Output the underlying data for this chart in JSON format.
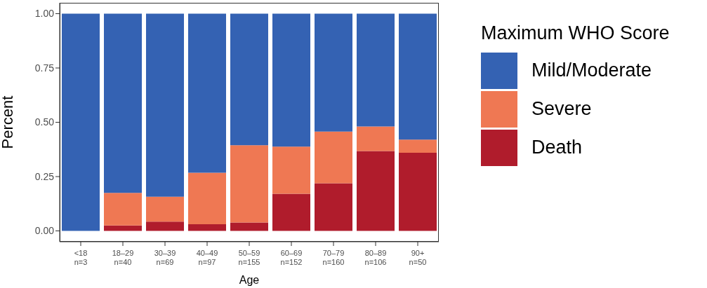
{
  "chart_data": {
    "type": "bar",
    "stacked": true,
    "xlabel": "Age",
    "ylabel": "Percent",
    "legend_title": "Maximum WHO Score",
    "categories": [
      "<18\nn=3",
      "18–29\nn=40",
      "30–39\nn=69",
      "40–49\nn=97",
      "50–59\nn=155",
      "60–69\nn=152",
      "70–79\nn=160",
      "80–89\nn=106",
      "90+\nn=50"
    ],
    "series": [
      {
        "name": "Death",
        "color": "#b01c2c",
        "values": [
          0,
          0.025,
          0.043,
          0.031,
          0.039,
          0.171,
          0.219,
          0.368,
          0.36
        ]
      },
      {
        "name": "Severe",
        "color": "#ef7853",
        "values": [
          0,
          0.15,
          0.114,
          0.237,
          0.355,
          0.217,
          0.238,
          0.113,
          0.06
        ]
      },
      {
        "name": "Mild/Moderate",
        "color": "#3462b3",
        "values": [
          1,
          0.825,
          0.843,
          0.732,
          0.606,
          0.612,
          0.543,
          0.519,
          0.58
        ]
      }
    ],
    "ylim": [
      -0.05,
      1.05
    ],
    "yticks": [
      {
        "value": 0,
        "label": "0.00"
      },
      {
        "value": 0.25,
        "label": "0.25"
      },
      {
        "value": 0.5,
        "label": "0.50"
      },
      {
        "value": 0.75,
        "label": "0.75"
      },
      {
        "value": 1,
        "label": "1.00"
      }
    ],
    "grid": false,
    "legend": "right"
  }
}
